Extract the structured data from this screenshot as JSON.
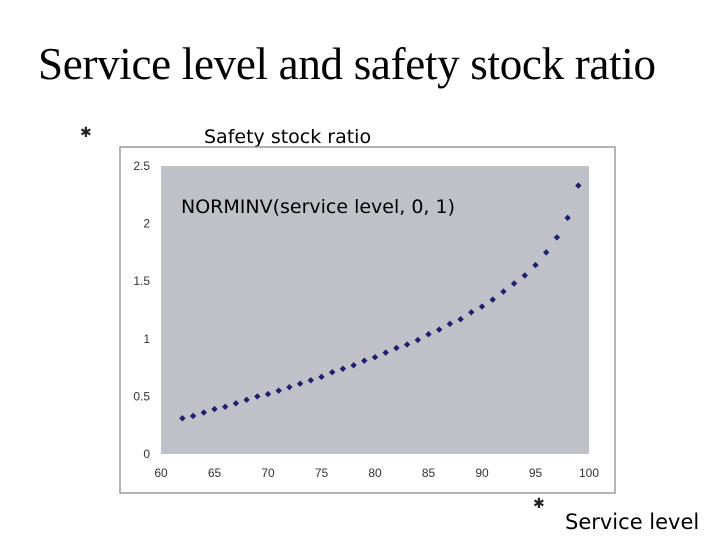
{
  "slide": {
    "title": "Service level and safety stock ratio",
    "y_caption": "Safety stock ratio",
    "x_caption": "Service level",
    "y_glyph": "✱",
    "x_glyph": "✱"
  },
  "chart_data": {
    "type": "scatter",
    "title": "",
    "annotation": "NORMINV(service level, 0, 1)",
    "xlabel": "Service level",
    "ylabel": "Safety stock ratio",
    "xlim": [
      60,
      100
    ],
    "ylim": [
      0,
      2.5
    ],
    "xticks": [
      "60",
      "65",
      "70",
      "75",
      "80",
      "85",
      "90",
      "95",
      "100"
    ],
    "yticks": [
      "0",
      "0.5",
      "1",
      "1.5",
      "2",
      "2.5"
    ],
    "grid": false,
    "colors": {
      "plot_bg": "#c0c0c8",
      "marker": "#1f1f6e",
      "frame": "#9a9a9a"
    },
    "x": [
      62,
      63,
      64,
      65,
      66,
      67,
      68,
      69,
      70,
      71,
      72,
      73,
      74,
      75,
      76,
      77,
      78,
      79,
      80,
      81,
      82,
      83,
      84,
      85,
      86,
      87,
      88,
      89,
      90,
      91,
      92,
      93,
      94,
      95,
      96,
      97,
      98,
      99
    ],
    "y": [
      0.31,
      0.33,
      0.36,
      0.39,
      0.41,
      0.44,
      0.47,
      0.5,
      0.52,
      0.55,
      0.58,
      0.61,
      0.64,
      0.67,
      0.71,
      0.74,
      0.77,
      0.81,
      0.84,
      0.88,
      0.92,
      0.95,
      0.99,
      1.04,
      1.08,
      1.13,
      1.17,
      1.23,
      1.28,
      1.34,
      1.41,
      1.48,
      1.55,
      1.64,
      1.75,
      1.88,
      2.05,
      2.33
    ]
  }
}
